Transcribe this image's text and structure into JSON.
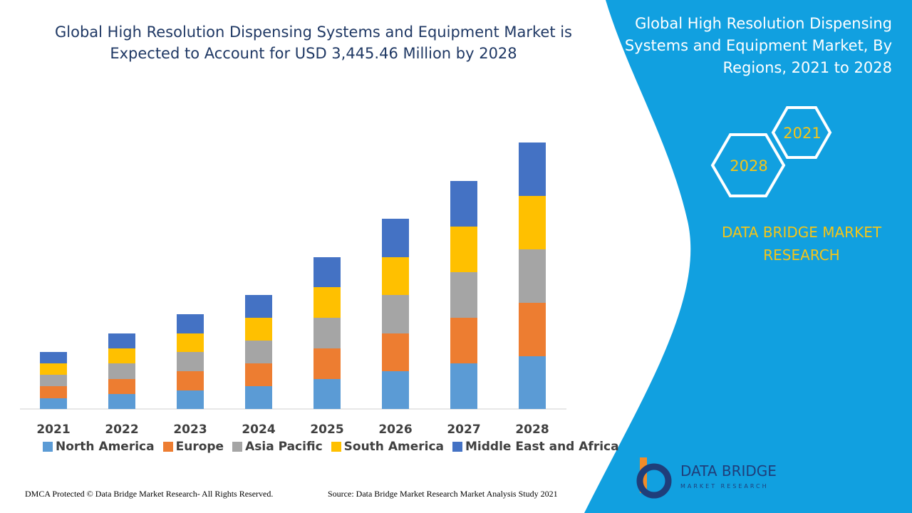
{
  "chart_data": {
    "type": "bar",
    "stacked": true,
    "title": "Global High Resolution Dispensing Systems and Equipment Market is Expected to Account for USD 3,445.46 Million by 2028",
    "categories": [
      "2021",
      "2022",
      "2023",
      "2024",
      "2025",
      "2026",
      "2027",
      "2028"
    ],
    "series": [
      {
        "name": "North America",
        "color": "#5b9bd5",
        "values": [
          15,
          21,
          26,
          32,
          42,
          53,
          64,
          74
        ]
      },
      {
        "name": "Europe",
        "color": "#ed7d31",
        "values": [
          17,
          21,
          27,
          32,
          43,
          53,
          64,
          75
        ]
      },
      {
        "name": "Asia Pacific",
        "color": "#a5a5a5",
        "values": [
          16,
          22,
          27,
          32,
          43,
          54,
          64,
          75
        ]
      },
      {
        "name": "South America",
        "color": "#ffc000",
        "values": [
          16,
          21,
          26,
          32,
          43,
          53,
          64,
          75
        ]
      },
      {
        "name": "Middle East and Africa",
        "color": "#4472c4",
        "values": [
          16,
          21,
          27,
          32,
          42,
          54,
          64,
          75
        ]
      }
    ]
  },
  "panel": {
    "title": "Global High Resolution Dispensing Systems and Equipment Market, By Regions, 2021 to 2028",
    "hexagons": [
      "2021",
      "2028"
    ],
    "brand": "DATA BRIDGE MARKET RESEARCH"
  },
  "logo": {
    "name": "DATA BRIDGE",
    "tagline": "MARKET RESEARCH"
  },
  "footer": {
    "left": "DMCA Protected © Data Bridge Market Research- All Rights Reserved.",
    "right": "Source: Data Bridge Market Research Market Analysis Study 2021"
  }
}
